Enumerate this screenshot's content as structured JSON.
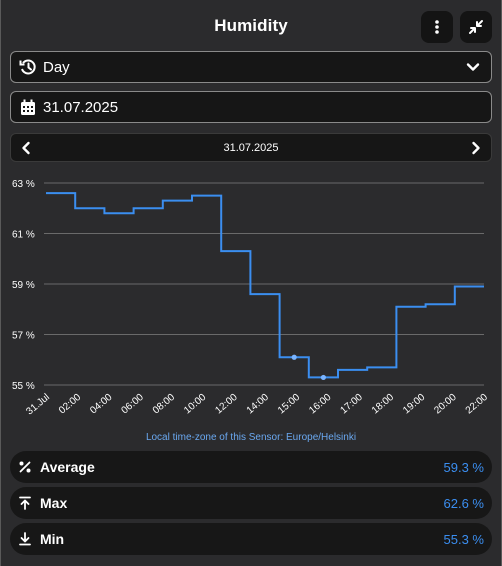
{
  "header": {
    "title": "Humidity"
  },
  "period_select": {
    "value": "Day"
  },
  "date_field": {
    "value": "31.07.2025"
  },
  "navigator": {
    "date": "31.07.2025"
  },
  "colors": {
    "accent": "#3b8ef0",
    "background": "#2b2b2d",
    "panel": "#171717"
  },
  "chart_data": {
    "type": "line",
    "step": true,
    "title": "",
    "xlabel": "",
    "ylabel": "",
    "ylim": [
      55,
      63
    ],
    "y_ticks": [
      "63 %",
      "61 %",
      "59 %",
      "57 %",
      "55 %"
    ],
    "x_ticks": [
      "31.Jul",
      "02:00",
      "04:00",
      "06:00",
      "08:00",
      "10:00",
      "12:00",
      "14:00",
      "15:00",
      "16:00",
      "17:00",
      "18:00",
      "19:00",
      "20:00",
      "22:00"
    ],
    "grid": true,
    "series": [
      {
        "x": [
          0,
          1,
          2,
          3,
          4,
          5,
          6,
          7,
          8,
          9,
          10,
          11,
          12,
          13,
          14,
          15
        ],
        "values": [
          62.6,
          62.0,
          61.8,
          62.0,
          62.3,
          62.5,
          60.3,
          58.6,
          56.1,
          55.3,
          55.6,
          55.7,
          58.1,
          58.2,
          58.9,
          58.9
        ]
      }
    ],
    "footnote": "Local time-zone of this Sensor: Europe/Helsinki"
  },
  "stats": {
    "average": {
      "label": "Average",
      "value": "59.3 %",
      "icon": "percent-icon"
    },
    "max": {
      "label": "Max",
      "value": "62.6 %",
      "icon": "arrow-up-to-line-icon"
    },
    "min": {
      "label": "Min",
      "value": "55.3 %",
      "icon": "arrow-down-to-line-icon"
    }
  }
}
